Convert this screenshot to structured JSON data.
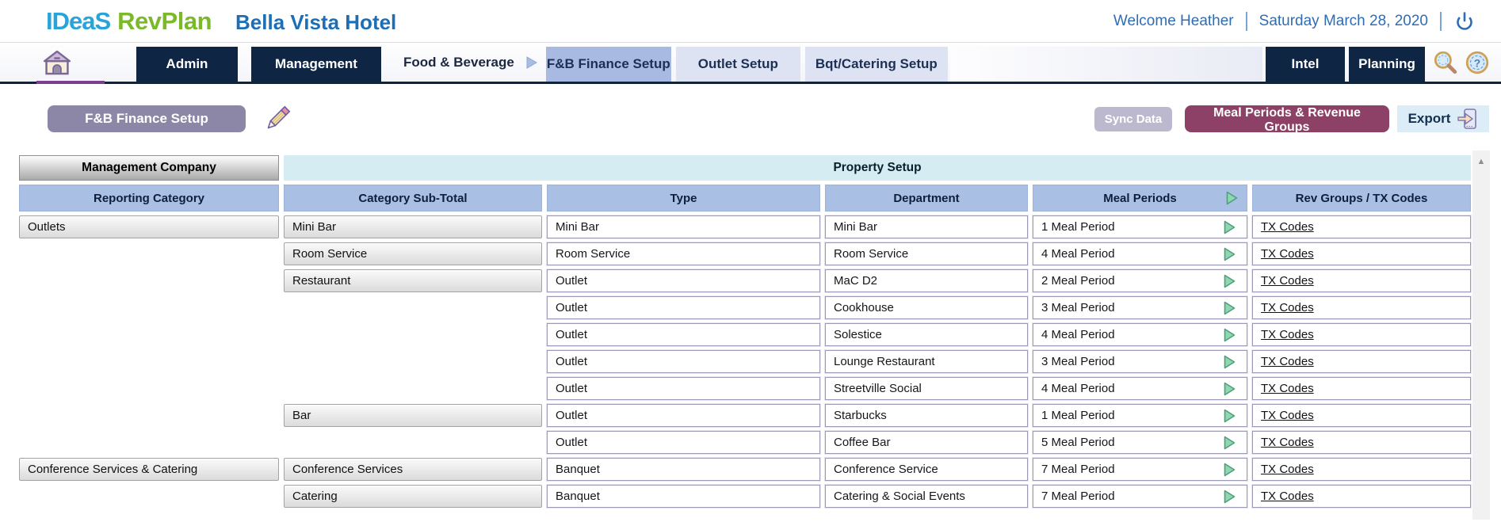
{
  "header": {
    "logo_primary": "IDeaS",
    "logo_secondary": "RevPlan",
    "property_name": "Bella Vista Hotel",
    "welcome_text": "Welcome Heather",
    "date_text": "Saturday March 28, 2020"
  },
  "navbar": {
    "buttons": {
      "admin": "Admin",
      "management": "Management",
      "intel": "Intel",
      "planning": "Planning"
    },
    "section_label": "Food & Beverage",
    "tabs": [
      {
        "label": "F&B Finance Setup",
        "active": true
      },
      {
        "label": "Outlet Setup",
        "active": false
      },
      {
        "label": "Bqt/Catering Setup",
        "active": false
      }
    ]
  },
  "toolbar": {
    "page_title_button": "F&B Finance Setup",
    "sync_button": "Sync Data",
    "meal_periods_button": "Meal Periods & Revenue Groups",
    "export_button": "Export"
  },
  "table": {
    "group_headers": {
      "left": "Management Company",
      "right": "Property Setup"
    },
    "columns": [
      "Reporting Category",
      "Category Sub-Total",
      "Type",
      "Department",
      "Meal Periods",
      "Rev Groups / TX Codes"
    ],
    "rows": [
      {
        "reporting_category": "Outlets",
        "category_sub_total": "Mini Bar",
        "type": "Mini Bar",
        "department": "Mini Bar",
        "meal_periods": "1 Meal Period",
        "rev_link": "TX Codes"
      },
      {
        "reporting_category": "",
        "category_sub_total": "Room Service",
        "type": "Room Service",
        "department": "Room Service",
        "meal_periods": "4 Meal Period",
        "rev_link": "TX Codes"
      },
      {
        "reporting_category": "",
        "category_sub_total": "Restaurant",
        "type": "Outlet",
        "department": "MaC D2",
        "meal_periods": "2 Meal Period",
        "rev_link": "TX Codes"
      },
      {
        "reporting_category": "",
        "category_sub_total": "",
        "type": "Outlet",
        "department": "Cookhouse",
        "meal_periods": "3 Meal Period",
        "rev_link": "TX Codes"
      },
      {
        "reporting_category": "",
        "category_sub_total": "",
        "type": "Outlet",
        "department": "Solestice",
        "meal_periods": "4 Meal Period",
        "rev_link": "TX Codes"
      },
      {
        "reporting_category": "",
        "category_sub_total": "",
        "type": "Outlet",
        "department": "Lounge Restaurant",
        "meal_periods": "3 Meal Period",
        "rev_link": "TX Codes"
      },
      {
        "reporting_category": "",
        "category_sub_total": "",
        "type": "Outlet",
        "department": "Streetville Social",
        "meal_periods": "4 Meal Period",
        "rev_link": "TX Codes"
      },
      {
        "reporting_category": "",
        "category_sub_total": "Bar",
        "type": "Outlet",
        "department": "Starbucks",
        "meal_periods": "1 Meal Period",
        "rev_link": "TX Codes"
      },
      {
        "reporting_category": "",
        "category_sub_total": "",
        "type": "Outlet",
        "department": "Coffee Bar",
        "meal_periods": "5 Meal Period",
        "rev_link": "TX Codes"
      },
      {
        "reporting_category": "Conference Services & Catering",
        "category_sub_total": "Conference Services",
        "type": "Banquet",
        "department": "Conference Service",
        "meal_periods": "7 Meal Period",
        "rev_link": "TX Codes"
      },
      {
        "reporting_category": "",
        "category_sub_total": "Catering",
        "type": "Banquet",
        "department": "Catering & Social Events",
        "meal_periods": "7 Meal Period",
        "rev_link": "TX Codes"
      }
    ]
  },
  "scrollbar": {
    "up_glyph": "▲"
  },
  "colors": {
    "brand_blue": "#2aa4d8",
    "brand_green": "#7cb92a",
    "link_blue": "#2e6db4",
    "nav_navy": "#0e2644",
    "tab_active": "#a9bae2",
    "tab_inactive": "#dde3f3",
    "title_button_purple": "#8d87a7",
    "sync_button_gray": "#bcb9cf",
    "meal_periods_button_maroon": "#8e4166",
    "export_button_blue": "#dcedf8",
    "property_setup_cyan": "#d4ecf2",
    "column_header_periwinkle": "#aabfe4",
    "arrow_green": "#8ed7b0",
    "home_underline_purple": "#7d3f8d"
  }
}
